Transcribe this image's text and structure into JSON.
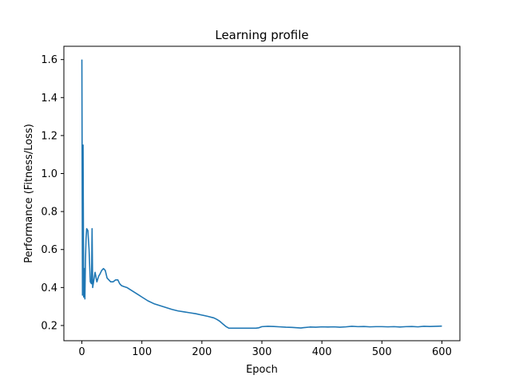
{
  "chart_data": {
    "type": "line",
    "title": "Learning profile",
    "xlabel": "Epoch",
    "ylabel": "Performance (Fitness/Loss)",
    "xlim": [
      -30,
      630
    ],
    "ylim": [
      0.12,
      1.67
    ],
    "x_ticks": [
      0,
      100,
      200,
      300,
      400,
      500,
      600
    ],
    "y_ticks": [
      0.2,
      0.4,
      0.6,
      0.8,
      1.0,
      1.2,
      1.4,
      1.6
    ],
    "x_tick_labels": [
      "0",
      "100",
      "200",
      "300",
      "400",
      "500",
      "600"
    ],
    "y_tick_labels": [
      "0.2",
      "0.4",
      "0.6",
      "0.8",
      "1.0",
      "1.2",
      "1.4",
      "1.6"
    ],
    "grid": false,
    "series": [
      {
        "color": "#1f77b4",
        "x": [
          0,
          1,
          2,
          3,
          4,
          5,
          6,
          7,
          8,
          10,
          12,
          14,
          16,
          17,
          18,
          20,
          22,
          25,
          28,
          30,
          33,
          36,
          39,
          42,
          45,
          48,
          52,
          56,
          60,
          63,
          66,
          70,
          75,
          80,
          85,
          90,
          95,
          100,
          110,
          120,
          130,
          140,
          150,
          160,
          170,
          180,
          190,
          200,
          210,
          220,
          225,
          230,
          235,
          240,
          245,
          250,
          260,
          270,
          280,
          290,
          295,
          300,
          310,
          320,
          330,
          340,
          350,
          360,
          365,
          370,
          380,
          390,
          400,
          410,
          420,
          430,
          440,
          450,
          460,
          470,
          480,
          490,
          500,
          510,
          520,
          530,
          540,
          550,
          560,
          570,
          580,
          590,
          600
        ],
        "y": [
          1.6,
          0.36,
          1.15,
          0.35,
          0.5,
          0.34,
          0.55,
          0.66,
          0.71,
          0.7,
          0.6,
          0.43,
          0.42,
          0.71,
          0.4,
          0.44,
          0.48,
          0.43,
          0.46,
          0.47,
          0.49,
          0.5,
          0.49,
          0.45,
          0.44,
          0.43,
          0.43,
          0.44,
          0.44,
          0.42,
          0.41,
          0.405,
          0.4,
          0.39,
          0.38,
          0.37,
          0.36,
          0.35,
          0.33,
          0.315,
          0.305,
          0.295,
          0.285,
          0.277,
          0.272,
          0.267,
          0.262,
          0.255,
          0.248,
          0.24,
          0.232,
          0.222,
          0.208,
          0.195,
          0.186,
          0.186,
          0.186,
          0.186,
          0.186,
          0.186,
          0.188,
          0.194,
          0.196,
          0.195,
          0.193,
          0.191,
          0.19,
          0.188,
          0.187,
          0.189,
          0.192,
          0.191,
          0.193,
          0.192,
          0.193,
          0.191,
          0.193,
          0.196,
          0.194,
          0.195,
          0.193,
          0.194,
          0.194,
          0.193,
          0.194,
          0.192,
          0.194,
          0.195,
          0.193,
          0.196,
          0.195,
          0.196,
          0.197
        ]
      }
    ]
  }
}
